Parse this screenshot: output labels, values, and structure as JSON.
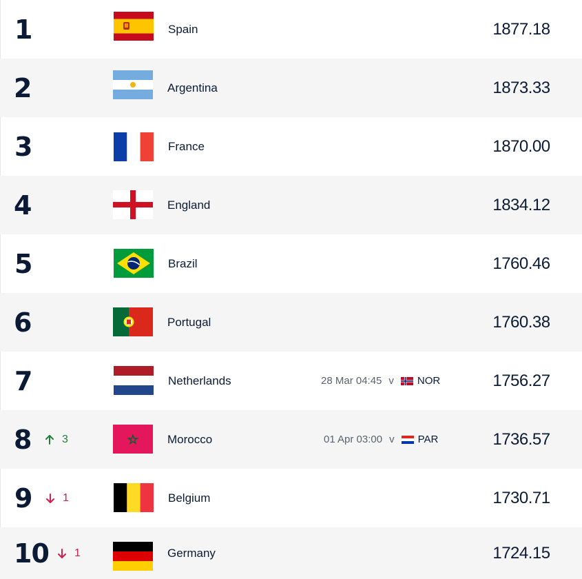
{
  "rankings": [
    {
      "rank": "1",
      "team": "Spain",
      "points": "1877.18",
      "flag_icon": "spain-flag-icon"
    },
    {
      "rank": "2",
      "team": "Argentina",
      "points": "1873.33",
      "flag_icon": "argentina-flag-icon"
    },
    {
      "rank": "3",
      "team": "France",
      "points": "1870.00",
      "flag_icon": "france-flag-icon"
    },
    {
      "rank": "4",
      "team": "England",
      "points": "1834.12",
      "flag_icon": "england-flag-icon"
    },
    {
      "rank": "5",
      "team": "Brazil",
      "points": "1760.46",
      "flag_icon": "brazil-flag-icon"
    },
    {
      "rank": "6",
      "team": "Portugal",
      "points": "1760.38",
      "flag_icon": "portugal-flag-icon"
    },
    {
      "rank": "7",
      "team": "Netherlands",
      "points": "1756.27",
      "flag_icon": "netherlands-flag-icon",
      "fixture": {
        "datetime": "28 Mar 04:45",
        "vs": "v",
        "opponent": "NOR",
        "opponent_flag_icon": "norway-flag-icon"
      }
    },
    {
      "rank": "8",
      "team": "Morocco",
      "points": "1736.57",
      "flag_icon": "morocco-flag-icon",
      "movement": {
        "direction": "up",
        "value": "3",
        "icon": "arrow-up-icon"
      },
      "fixture": {
        "datetime": "01 Apr 03:00",
        "vs": "v",
        "opponent": "PAR",
        "opponent_flag_icon": "paraguay-flag-icon"
      }
    },
    {
      "rank": "9",
      "team": "Belgium",
      "points": "1730.71",
      "flag_icon": "belgium-flag-icon",
      "movement": {
        "direction": "down",
        "value": "1",
        "icon": "arrow-down-icon"
      }
    },
    {
      "rank": "10",
      "team": "Germany",
      "points": "1724.15",
      "flag_icon": "germany-flag-icon",
      "movement": {
        "direction": "down",
        "value": "1",
        "icon": "arrow-down-icon"
      }
    }
  ],
  "colors": {
    "text_primary": "#0b1b35",
    "movement_up": "#1e7d37",
    "movement_down": "#d11e4a",
    "row_alt_bg": "#f5f5f5"
  }
}
